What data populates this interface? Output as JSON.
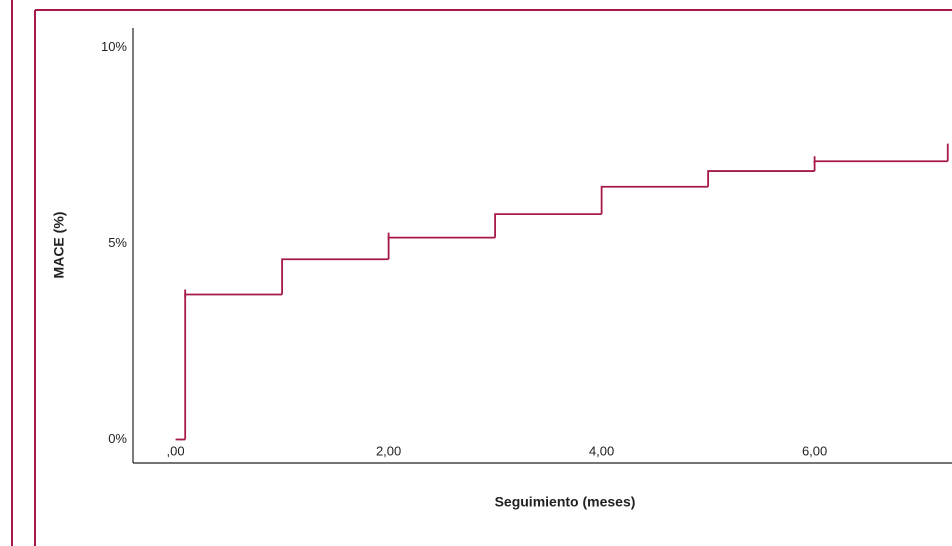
{
  "chart_data": {
    "type": "step",
    "x_label": "Seguimiento (meses)",
    "y_label": "MACE (%)",
    "color": "#a8194b",
    "x": [
      0,
      0.09,
      1,
      2,
      3,
      4,
      5,
      6,
      7.25
    ],
    "values": [
      0,
      3.7,
      4.6,
      5.15,
      5.75,
      6.45,
      6.85,
      7.1,
      7.55
    ],
    "censored": {
      "x": [
        0.09,
        2,
        6
      ],
      "values": [
        3.7,
        5.15,
        7.1
      ]
    },
    "xlim": [
      -0.4,
      7.29
    ],
    "ylim": [
      -0.6,
      10.5
    ],
    "xticks": [
      {
        "value": 0,
        "label": ",00"
      },
      {
        "value": 2,
        "label": "2,00"
      },
      {
        "value": 4,
        "label": "4,00"
      },
      {
        "value": 6,
        "label": "6,00"
      }
    ],
    "yticks": [
      {
        "value": 0,
        "label": "0%"
      },
      {
        "value": 5,
        "label": "5%"
      },
      {
        "value": 10,
        "label": "10%"
      }
    ],
    "grid": false
  }
}
